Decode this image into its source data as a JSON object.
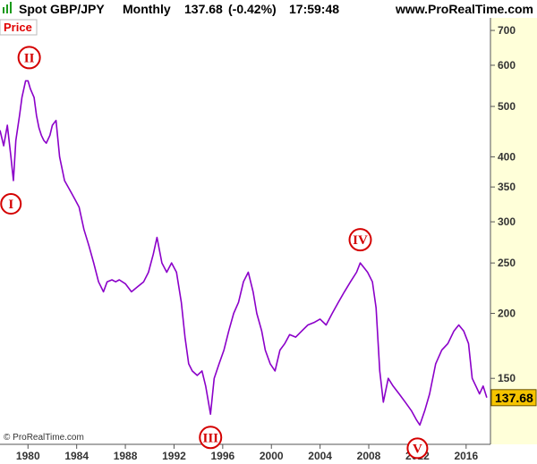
{
  "header": {
    "symbol": "Spot GBP/JPY",
    "period": "Monthly",
    "last": "137.68",
    "change": "(-0.42%)",
    "time": "17:59:48",
    "site": "www.ProRealTime.com"
  },
  "price_tab_label": "Price",
  "copyright": "© ProRealTime.com",
  "colors": {
    "line": "#8b00c9",
    "marker": "#d40000",
    "axis_bg": "#ffffd9",
    "last_bg": "#f5c400"
  },
  "chart_data": {
    "type": "line",
    "title": "Spot GBP/JPY",
    "xlabel": "",
    "ylabel": "",
    "y_scale": "log",
    "ylim": [
      112,
      740
    ],
    "xlim": [
      1977.7,
      2018.0
    ],
    "grid": false,
    "y_ticks": [
      150,
      200,
      250,
      300,
      350,
      400,
      500,
      600,
      700
    ],
    "x_ticks": [
      "1980",
      "1984",
      "1988",
      "1992",
      "1996",
      "2000",
      "2004",
      "2008",
      "2012",
      "2016"
    ],
    "last_value": "137.68",
    "series": [
      {
        "x": [
          1977.7,
          1978.0,
          1978.3,
          1978.6,
          1978.8,
          1979.0,
          1979.3,
          1979.5,
          1979.8,
          1980.0,
          1980.2,
          1980.5,
          1980.7,
          1980.9,
          1981.1,
          1981.3,
          1981.5,
          1981.8,
          1982.0,
          1982.3,
          1982.6,
          1982.8,
          1983.0,
          1983.3,
          1983.6,
          1983.9,
          1984.2,
          1984.6,
          1985.0,
          1985.4,
          1985.8,
          1986.2,
          1986.5,
          1986.9,
          1987.2,
          1987.5,
          1988.0,
          1988.5,
          1989.0,
          1989.5,
          1989.9,
          1990.3,
          1990.6,
          1991.0,
          1991.4,
          1991.8,
          1992.2,
          1992.6,
          1992.9,
          1993.2,
          1993.5,
          1993.9,
          1994.3,
          1994.6,
          1995.0,
          1995.3,
          1995.7,
          1996.1,
          1996.5,
          1996.9,
          1997.3,
          1997.7,
          1998.1,
          1998.5,
          1998.8,
          1999.2,
          1999.5,
          1999.9,
          2000.3,
          2000.7,
          2001.1,
          2001.5,
          2002.0,
          2002.5,
          2003.0,
          2003.5,
          2004.0,
          2004.5,
          2005.0,
          2005.5,
          2006.0,
          2006.5,
          2007.0,
          2007.3,
          2007.6,
          2007.9,
          2008.3,
          2008.6,
          2008.9,
          2009.2,
          2009.6,
          2010.0,
          2010.5,
          2011.0,
          2011.5,
          2011.9,
          2012.2,
          2012.6,
          2013.0,
          2013.5,
          2014.0,
          2014.5,
          2015.0,
          2015.4,
          2015.8,
          2016.2,
          2016.5,
          2016.8,
          2017.1,
          2017.4,
          2017.7
        ],
        "y": [
          450,
          420,
          460,
          400,
          360,
          430,
          480,
          520,
          560,
          560,
          540,
          520,
          480,
          455,
          440,
          430,
          425,
          440,
          460,
          470,
          400,
          380,
          360,
          350,
          340,
          330,
          320,
          290,
          270,
          250,
          230,
          220,
          230,
          232,
          230,
          232,
          228,
          220,
          225,
          230,
          240,
          260,
          280,
          250,
          240,
          250,
          240,
          210,
          180,
          160,
          155,
          152,
          155,
          145,
          128,
          150,
          160,
          170,
          185,
          200,
          210,
          230,
          240,
          220,
          200,
          185,
          170,
          160,
          155,
          170,
          175,
          182,
          180,
          185,
          190,
          192,
          195,
          190,
          200,
          210,
          220,
          230,
          240,
          250,
          245,
          240,
          230,
          205,
          155,
          135,
          150,
          145,
          140,
          135,
          130,
          125,
          122,
          130,
          140,
          160,
          170,
          175,
          185,
          190,
          185,
          175,
          150,
          145,
          140,
          145,
          137.68
        ]
      }
    ],
    "annotations": [
      {
        "label": "I",
        "x": 1978.6,
        "y": 360
      },
      {
        "label": "II",
        "x": 1980.1,
        "y": 560
      },
      {
        "label": "III",
        "x": 1995.0,
        "y": 128
      },
      {
        "label": "IV",
        "x": 2007.3,
        "y": 250
      },
      {
        "label": "V",
        "x": 2012.0,
        "y": 122
      }
    ]
  }
}
